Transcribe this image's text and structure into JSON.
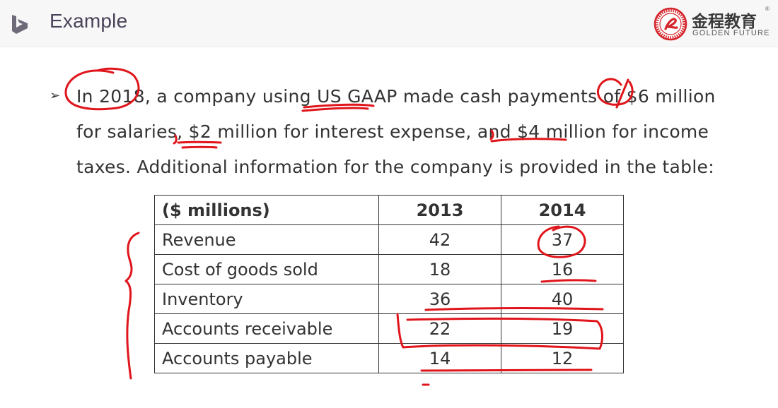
{
  "header": {
    "title": "Example",
    "brand_cn": "金程教育",
    "brand_en": "GOLDEN FUTURE",
    "brand_reg": "®"
  },
  "paragraph": {
    "bullet": "➢",
    "line1": [
      "In 2018",
      ", a company using ",
      "US GAAP",
      " made cash payments of ",
      "$6",
      " million"
    ],
    "line2": [
      "for salaries",
      ", ",
      "$2",
      " million for interest expense, and ",
      "$4 million",
      " for income"
    ],
    "line3": "taxes. Additional information for the company is provided in the table:"
  },
  "table": {
    "headers": [
      "($ millions)",
      "2013",
      "2014"
    ],
    "rows": [
      [
        "Revenue",
        "42",
        "37"
      ],
      [
        "Cost of goods sold",
        "18",
        "16"
      ],
      [
        "Inventory",
        "36",
        "40"
      ],
      [
        "Accounts receivable",
        "22",
        "19"
      ],
      [
        "Accounts payable",
        "14",
        "12"
      ]
    ]
  },
  "colors": {
    "ink": "#e0151b",
    "text": "#333333",
    "header_bg": "#f7f7f8",
    "title": "#4a4258",
    "brand_red": "#d4262c"
  },
  "icons": {
    "header_logo": "bing-logo-icon",
    "brand_seal": "golden-future-seal-icon",
    "bullet": "arrow-bullet-icon"
  }
}
